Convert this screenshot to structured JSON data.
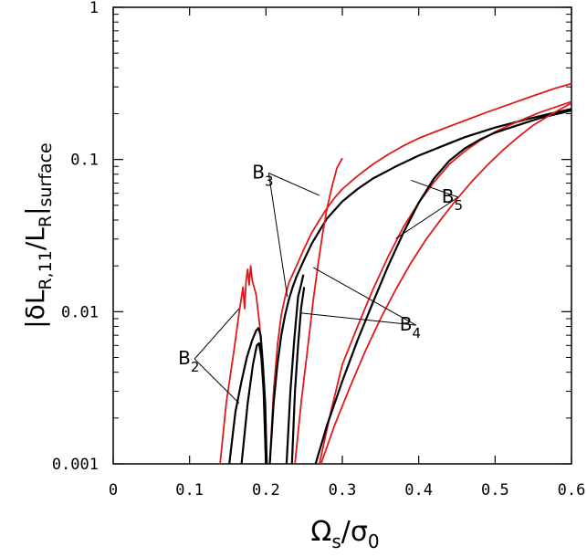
{
  "chart_data": {
    "type": "line",
    "x_label": {
      "base": "Ω",
      "base_sub": "s",
      "sep": "/",
      "den": "σ",
      "den_sub": "0"
    },
    "y_label": {
      "pre": "|δL",
      "pre_sub": "R,11",
      "mid": "/L",
      "mid_sub": "R",
      "post": "|",
      "post_sub": "surface"
    },
    "xlim": [
      0,
      0.6
    ],
    "ylim": [
      0.001,
      1
    ],
    "y_scale": "log",
    "x_ticks": [
      {
        "value": 0,
        "label": "0"
      },
      {
        "value": 0.1,
        "label": "0.1"
      },
      {
        "value": 0.2,
        "label": "0.2"
      },
      {
        "value": 0.3,
        "label": "0.3"
      },
      {
        "value": 0.4,
        "label": "0.4"
      },
      {
        "value": 0.5,
        "label": "0.5"
      },
      {
        "value": 0.6,
        "label": "0.6"
      }
    ],
    "y_ticks": [
      {
        "value": 0.001,
        "label": "0.001"
      },
      {
        "value": 0.01,
        "label": "0.01"
      },
      {
        "value": 0.1,
        "label": "0.1"
      },
      {
        "value": 1,
        "label": "1"
      }
    ],
    "colors": {
      "red": "#e0191b",
      "black": "#000000"
    },
    "series": [
      {
        "id": "red-b2",
        "color": "red",
        "points": [
          [
            0.14,
            0.001
          ],
          [
            0.148,
            0.0025
          ],
          [
            0.158,
            0.0055
          ],
          [
            0.165,
            0.01
          ],
          [
            0.17,
            0.0145
          ],
          [
            0.172,
            0.0105
          ],
          [
            0.174,
            0.016
          ],
          [
            0.176,
            0.019
          ],
          [
            0.178,
            0.015
          ],
          [
            0.18,
            0.02
          ],
          [
            0.182,
            0.016
          ],
          [
            0.187,
            0.013
          ],
          [
            0.192,
            0.008
          ],
          [
            0.196,
            0.004
          ],
          [
            0.198,
            0.002
          ],
          [
            0.2,
            0.001
          ]
        ]
      },
      {
        "id": "black-b2",
        "color": "black",
        "points": [
          [
            0.152,
            0.001
          ],
          [
            0.16,
            0.0022
          ],
          [
            0.168,
            0.0035
          ],
          [
            0.175,
            0.005
          ],
          [
            0.182,
            0.0065
          ],
          [
            0.187,
            0.0075
          ],
          [
            0.19,
            0.0078
          ],
          [
            0.193,
            0.007
          ],
          [
            0.196,
            0.0045
          ],
          [
            0.199,
            0.0025
          ],
          [
            0.201,
            0.001
          ]
        ]
      },
      {
        "id": "black-b2-inner",
        "color": "black",
        "points": [
          [
            0.168,
            0.001
          ],
          [
            0.176,
            0.0025
          ],
          [
            0.183,
            0.0045
          ],
          [
            0.188,
            0.006
          ],
          [
            0.191,
            0.0062
          ],
          [
            0.194,
            0.005
          ],
          [
            0.197,
            0.003
          ],
          [
            0.2,
            0.001
          ]
        ]
      },
      {
        "id": "red-b3",
        "color": "red",
        "points": [
          [
            0.205,
            0.001
          ],
          [
            0.21,
            0.003
          ],
          [
            0.215,
            0.006
          ],
          [
            0.22,
            0.0095
          ],
          [
            0.225,
            0.0125
          ],
          [
            0.23,
            0.0155
          ],
          [
            0.24,
            0.02
          ],
          [
            0.25,
            0.026
          ],
          [
            0.26,
            0.033
          ],
          [
            0.27,
            0.04
          ],
          [
            0.28,
            0.048
          ],
          [
            0.29,
            0.056
          ],
          [
            0.3,
            0.064
          ],
          [
            0.32,
            0.078
          ],
          [
            0.34,
            0.093
          ],
          [
            0.36,
            0.108
          ],
          [
            0.38,
            0.123
          ],
          [
            0.4,
            0.138
          ],
          [
            0.43,
            0.158
          ],
          [
            0.46,
            0.18
          ],
          [
            0.49,
            0.205
          ],
          [
            0.52,
            0.232
          ],
          [
            0.55,
            0.262
          ],
          [
            0.58,
            0.295
          ],
          [
            0.6,
            0.315
          ]
        ]
      },
      {
        "id": "black-b3",
        "color": "black",
        "points": [
          [
            0.205,
            0.001
          ],
          [
            0.21,
            0.0025
          ],
          [
            0.215,
            0.0045
          ],
          [
            0.22,
            0.007
          ],
          [
            0.225,
            0.0095
          ],
          [
            0.23,
            0.012
          ],
          [
            0.235,
            0.0145
          ],
          [
            0.24,
            0.017
          ],
          [
            0.25,
            0.022
          ],
          [
            0.26,
            0.028
          ],
          [
            0.27,
            0.034
          ],
          [
            0.28,
            0.041
          ],
          [
            0.3,
            0.053
          ],
          [
            0.32,
            0.064
          ],
          [
            0.34,
            0.075
          ],
          [
            0.37,
            0.09
          ],
          [
            0.4,
            0.106
          ],
          [
            0.43,
            0.122
          ],
          [
            0.46,
            0.14
          ],
          [
            0.5,
            0.162
          ],
          [
            0.54,
            0.183
          ],
          [
            0.57,
            0.199
          ],
          [
            0.6,
            0.215
          ]
        ]
      },
      {
        "id": "black-b4a",
        "color": "black",
        "points": [
          [
            0.227,
            0.001
          ],
          [
            0.232,
            0.003
          ],
          [
            0.237,
            0.0065
          ],
          [
            0.242,
            0.0125
          ],
          [
            0.246,
            0.015
          ],
          [
            0.249,
            0.0175
          ]
        ]
      },
      {
        "id": "black-b4b",
        "color": "black",
        "points": [
          [
            0.234,
            0.001
          ],
          [
            0.238,
            0.003
          ],
          [
            0.242,
            0.006
          ],
          [
            0.246,
            0.0105
          ],
          [
            0.25,
            0.0145
          ]
        ]
      },
      {
        "id": "red-b4",
        "color": "red",
        "points": [
          [
            0.238,
            0.001
          ],
          [
            0.246,
            0.0025
          ],
          [
            0.255,
            0.006
          ],
          [
            0.262,
            0.012
          ],
          [
            0.268,
            0.02
          ],
          [
            0.274,
            0.032
          ],
          [
            0.28,
            0.048
          ],
          [
            0.287,
            0.068
          ],
          [
            0.293,
            0.088
          ],
          [
            0.3,
            0.102
          ]
        ]
      },
      {
        "id": "red-b4-lower",
        "color": "red",
        "points": [
          [
            0.27,
            0.001
          ],
          [
            0.285,
            0.0022
          ],
          [
            0.3,
            0.0045
          ],
          [
            0.32,
            0.008
          ],
          [
            0.34,
            0.014
          ],
          [
            0.36,
            0.023
          ],
          [
            0.38,
            0.036
          ],
          [
            0.4,
            0.052
          ],
          [
            0.42,
            0.071
          ],
          [
            0.44,
            0.093
          ],
          [
            0.46,
            0.113
          ],
          [
            0.48,
            0.133
          ],
          [
            0.5,
            0.152
          ],
          [
            0.53,
            0.178
          ],
          [
            0.56,
            0.205
          ],
          [
            0.6,
            0.24
          ]
        ]
      },
      {
        "id": "black-b5",
        "color": "black",
        "points": [
          [
            0.265,
            0.001
          ],
          [
            0.28,
            0.0018
          ],
          [
            0.3,
            0.0035
          ],
          [
            0.32,
            0.0065
          ],
          [
            0.34,
            0.0115
          ],
          [
            0.36,
            0.02
          ],
          [
            0.38,
            0.033
          ],
          [
            0.4,
            0.052
          ],
          [
            0.42,
            0.075
          ],
          [
            0.44,
            0.098
          ],
          [
            0.46,
            0.118
          ],
          [
            0.48,
            0.135
          ],
          [
            0.5,
            0.15
          ],
          [
            0.53,
            0.168
          ],
          [
            0.56,
            0.188
          ],
          [
            0.6,
            0.21
          ]
        ]
      },
      {
        "id": "red-b5",
        "color": "red",
        "points": [
          [
            0.272,
            0.001
          ],
          [
            0.29,
            0.0018
          ],
          [
            0.31,
            0.0032
          ],
          [
            0.33,
            0.0055
          ],
          [
            0.35,
            0.009
          ],
          [
            0.37,
            0.014
          ],
          [
            0.39,
            0.021
          ],
          [
            0.41,
            0.03
          ],
          [
            0.43,
            0.041
          ],
          [
            0.45,
            0.055
          ],
          [
            0.47,
            0.072
          ],
          [
            0.49,
            0.092
          ],
          [
            0.51,
            0.115
          ],
          [
            0.53,
            0.14
          ],
          [
            0.55,
            0.168
          ],
          [
            0.575,
            0.2
          ],
          [
            0.6,
            0.235
          ]
        ]
      }
    ],
    "annotations": [
      {
        "id": "b2",
        "label": "B",
        "sub": "2",
        "x": 0.085,
        "y": 0.0045,
        "pointers": [
          [
            0.165,
            0.0105
          ],
          [
            0.165,
            0.0025
          ]
        ]
      },
      {
        "id": "b3",
        "label": "B",
        "sub": "3",
        "x": 0.182,
        "y": 0.075,
        "pointers": [
          [
            0.27,
            0.058
          ],
          [
            0.228,
            0.0125
          ]
        ]
      },
      {
        "id": "b4",
        "label": "B",
        "sub": "4",
        "x": 0.375,
        "y": 0.0075,
        "pointers": [
          [
            0.262,
            0.0195
          ],
          [
            0.245,
            0.0098
          ]
        ]
      },
      {
        "id": "b5",
        "label": "B",
        "sub": "5",
        "x": 0.43,
        "y": 0.052,
        "pointers": [
          [
            0.39,
            0.073
          ],
          [
            0.37,
            0.0302
          ]
        ]
      }
    ]
  }
}
